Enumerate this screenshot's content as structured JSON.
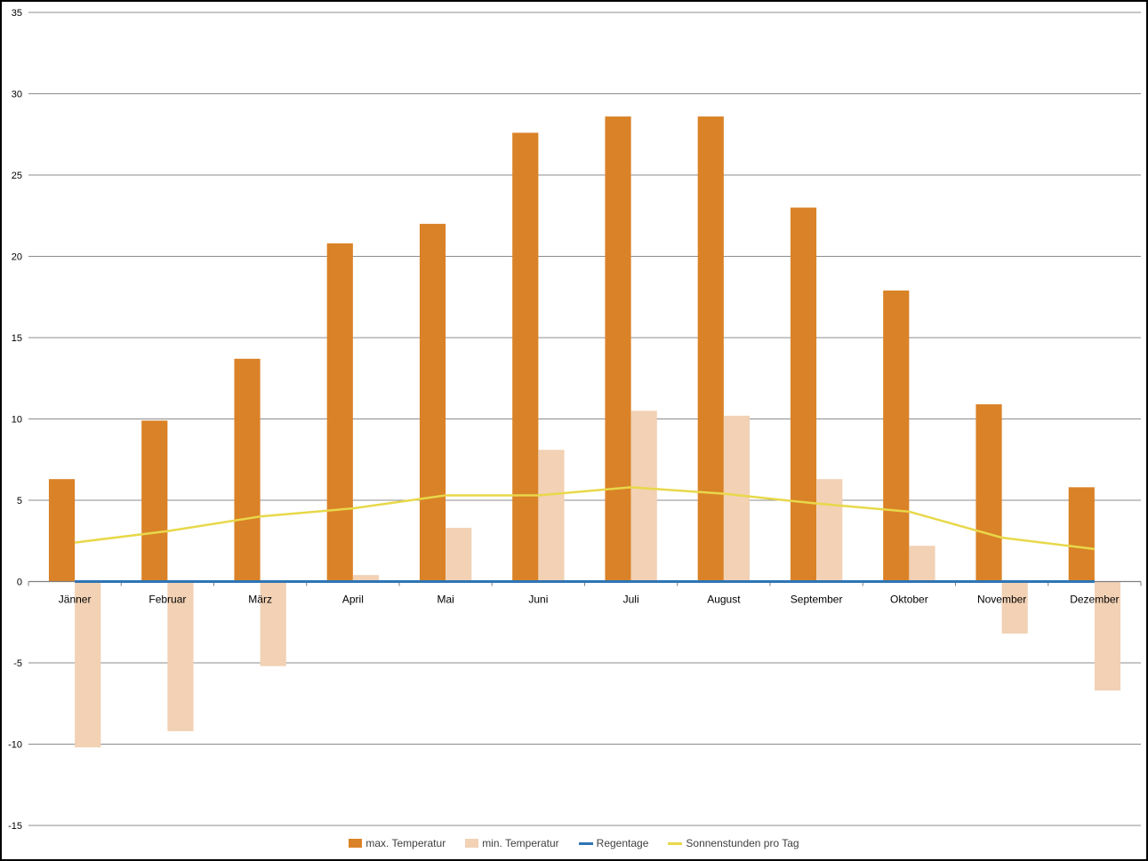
{
  "window": {
    "background": "#FFFFFF",
    "border_color": "#000000"
  },
  "chart_data": {
    "type": "combo",
    "title": "",
    "categories": [
      "Jänner",
      "Februar",
      "März",
      "April",
      "Mai",
      "Juni",
      "Juli",
      "August",
      "September",
      "Oktober",
      "November",
      "Dezember"
    ],
    "series": [
      {
        "name": "max. Temperatur",
        "chart_type": "bar",
        "color": "#DA8227",
        "values": [
          6.3,
          9.9,
          13.7,
          20.8,
          22.0,
          27.6,
          28.6,
          28.6,
          23.0,
          17.9,
          10.9,
          5.8
        ]
      },
      {
        "name": "min. Temperatur",
        "chart_type": "bar",
        "color": "#F2D1B4",
        "values": [
          -10.2,
          -9.2,
          -5.2,
          0.4,
          3.3,
          8.1,
          10.5,
          10.2,
          6.3,
          2.2,
          -3.2,
          -6.7
        ]
      },
      {
        "name": "Regentage",
        "chart_type": "line",
        "color": "#2E75B5",
        "values": [
          0,
          0,
          0,
          0,
          0,
          0,
          0,
          0,
          0,
          0,
          0,
          0
        ]
      },
      {
        "name": "Sonnenstunden pro Tag",
        "chart_type": "line",
        "color": "#E8D84A",
        "values": [
          2.4,
          3.1,
          4.0,
          4.5,
          5.3,
          5.3,
          5.8,
          5.4,
          4.8,
          4.3,
          2.7,
          2.0
        ]
      }
    ],
    "ylim": [
      -15,
      35
    ],
    "ytick_step": 5,
    "yticks": [
      35,
      30,
      25,
      20,
      15,
      10,
      5,
      0,
      -5,
      -10,
      -15
    ],
    "xlabel": "",
    "ylabel": "",
    "grid": true,
    "legend_position": "bottom",
    "colors": {
      "gridline": "#8C8C8C",
      "zero_axis": "#7F7F7F",
      "tick": "#7F7F7F",
      "axis_text": "#000000",
      "legend_text": "#3F3F3F"
    }
  }
}
